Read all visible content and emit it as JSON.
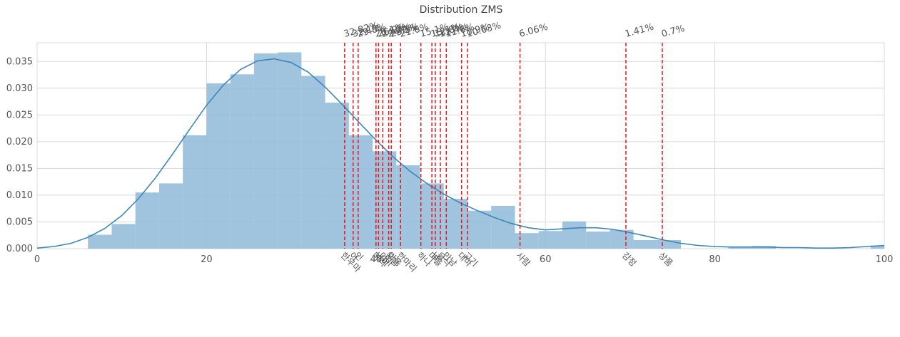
{
  "chart_data": {
    "type": "histogram",
    "title": "Distribution ZMS",
    "xlabel": "",
    "ylabel": "",
    "xlim": [
      0,
      100
    ],
    "ylim": [
      0,
      0.0385
    ],
    "x_ticks": [
      "0",
      "20",
      "40",
      "60",
      "80",
      "100"
    ],
    "x_tick_values": [
      0,
      20,
      40,
      60,
      80,
      100
    ],
    "y_ticks": [
      "0.000",
      "0.005",
      "0.010",
      "0.015",
      "0.020",
      "0.025",
      "0.030",
      "0.035"
    ],
    "y_tick_values": [
      0,
      0.005,
      0.01,
      0.015,
      0.02,
      0.025,
      0.03,
      0.035
    ],
    "grid": true,
    "colors": {
      "bars": "#8fb8d8",
      "kde": "#3a87bf",
      "markers": "#e8151b",
      "grid": "#d9d9d9"
    },
    "bins": [
      {
        "x0": 6.0,
        "x1": 8.8,
        "y": 0.0026
      },
      {
        "x0": 8.8,
        "x1": 11.6,
        "y": 0.0046
      },
      {
        "x0": 11.6,
        "x1": 14.4,
        "y": 0.0105
      },
      {
        "x0": 14.4,
        "x1": 17.2,
        "y": 0.0122
      },
      {
        "x0": 17.2,
        "x1": 20.0,
        "y": 0.0212
      },
      {
        "x0": 20.0,
        "x1": 22.8,
        "y": 0.0309
      },
      {
        "x0": 22.8,
        "x1": 25.6,
        "y": 0.0326
      },
      {
        "x0": 25.6,
        "x1": 28.4,
        "y": 0.0365
      },
      {
        "x0": 28.4,
        "x1": 31.2,
        "y": 0.0367
      },
      {
        "x0": 31.2,
        "x1": 34.0,
        "y": 0.0323
      },
      {
        "x0": 34.0,
        "x1": 36.8,
        "y": 0.0273
      },
      {
        "x0": 36.8,
        "x1": 39.6,
        "y": 0.0212
      },
      {
        "x0": 39.6,
        "x1": 42.4,
        "y": 0.0182
      },
      {
        "x0": 42.4,
        "x1": 45.2,
        "y": 0.0156
      },
      {
        "x0": 45.2,
        "x1": 48.0,
        "y": 0.0122
      },
      {
        "x0": 48.0,
        "x1": 50.8,
        "y": 0.0093
      },
      {
        "x0": 50.8,
        "x1": 53.6,
        "y": 0.0071
      },
      {
        "x0": 53.6,
        "x1": 56.4,
        "y": 0.008
      },
      {
        "x0": 56.4,
        "x1": 59.2,
        "y": 0.0029
      },
      {
        "x0": 59.2,
        "x1": 62.0,
        "y": 0.0033
      },
      {
        "x0": 62.0,
        "x1": 64.8,
        "y": 0.0051
      },
      {
        "x0": 64.8,
        "x1": 67.6,
        "y": 0.0032
      },
      {
        "x0": 67.6,
        "x1": 70.4,
        "y": 0.0035
      },
      {
        "x0": 70.4,
        "x1": 73.2,
        "y": 0.0016
      },
      {
        "x0": 73.2,
        "x1": 76.0,
        "y": 0.0016
      },
      {
        "x0": 76.0,
        "x1": 78.8,
        "y": 0.0
      },
      {
        "x0": 78.8,
        "x1": 81.6,
        "y": 0.0
      },
      {
        "x0": 81.6,
        "x1": 84.4,
        "y": 0.0003
      },
      {
        "x0": 84.4,
        "x1": 87.2,
        "y": 0.0005
      },
      {
        "x0": 87.2,
        "x1": 90.0,
        "y": 0.0
      },
      {
        "x0": 90.0,
        "x1": 92.8,
        "y": 0.0
      },
      {
        "x0": 92.8,
        "x1": 95.6,
        "y": 0.0
      },
      {
        "x0": 95.6,
        "x1": 98.4,
        "y": 0.0
      },
      {
        "x0": 98.4,
        "x1": 101.2,
        "y": 0.0006
      }
    ],
    "kde": {
      "x": [
        0,
        2,
        4,
        6,
        8,
        10,
        12,
        14,
        16,
        18,
        20,
        22,
        24,
        26,
        28,
        30,
        32,
        34,
        36,
        38,
        40,
        42,
        44,
        46,
        48,
        50,
        52,
        54,
        56,
        58,
        60,
        62,
        64,
        66,
        68,
        70,
        72,
        74,
        76,
        78,
        80,
        82,
        84,
        86,
        88,
        90,
        92,
        94,
        96,
        98,
        100
      ],
      "y": [
        0.0001,
        0.0004,
        0.001,
        0.0021,
        0.0038,
        0.0062,
        0.0094,
        0.0133,
        0.0177,
        0.0223,
        0.0268,
        0.0306,
        0.0335,
        0.0351,
        0.0355,
        0.0348,
        0.033,
        0.0302,
        0.027,
        0.0236,
        0.0203,
        0.0172,
        0.0145,
        0.0122,
        0.0102,
        0.0085,
        0.0071,
        0.0058,
        0.0047,
        0.0039,
        0.0035,
        0.0037,
        0.0039,
        0.0039,
        0.0036,
        0.003,
        0.0023,
        0.0016,
        0.001,
        0.0006,
        0.0004,
        0.0003,
        0.0003,
        0.0003,
        0.0002,
        0.0002,
        0.0001,
        0.0001,
        0.0002,
        0.0004,
        0.0006
      ]
    },
    "markers": [
      {
        "x": 36.3,
        "pct": "32.82%",
        "label": "한우마"
      },
      {
        "x": 37.3,
        "pct": "32.1%",
        "label": "이"
      },
      {
        "x": 37.9,
        "pct": "29.8%",
        "label": "인"
      },
      {
        "x": 40.0,
        "pct": "28.1%",
        "label": "마리"
      },
      {
        "x": 40.3,
        "pct": "26.9%",
        "label": "나이"
      },
      {
        "x": 40.8,
        "pct": "24.2%",
        "label": "이마"
      },
      {
        "x": 41.5,
        "pct": "24.0%",
        "label": "문장"
      },
      {
        "x": 41.8,
        "pct": "23.5%",
        "label": "마음"
      },
      {
        "x": 42.9,
        "pct": "21.6%",
        "label": "한마리"
      },
      {
        "x": 45.3,
        "pct": "15.1%",
        "label": "하나"
      },
      {
        "x": 46.6,
        "pct": "13.1%",
        "label": "마을"
      },
      {
        "x": 47.0,
        "pct": "12.8%",
        "label": "남"
      },
      {
        "x": 47.6,
        "pct": "12.4%",
        "label": "음식"
      },
      {
        "x": 48.3,
        "pct": "11.6%",
        "label": "만남"
      },
      {
        "x": 50.1,
        "pct": "10.9%",
        "label": "대마"
      },
      {
        "x": 50.8,
        "pct": "10.63%",
        "label": "고기"
      },
      {
        "x": 57.0,
        "pct": "6.06%",
        "label": "사람"
      },
      {
        "x": 69.5,
        "pct": "1.41%",
        "label": "감정"
      },
      {
        "x": 73.8,
        "pct": "0.7%",
        "label": "상품"
      }
    ]
  }
}
